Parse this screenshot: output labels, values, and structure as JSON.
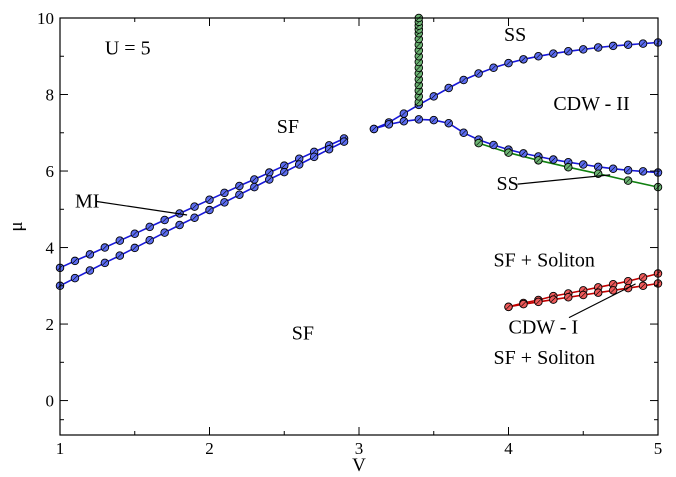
{
  "chart_data": {
    "type": "scatter",
    "xlabel": "V",
    "ylabel": "μ",
    "xlim": [
      1,
      5
    ],
    "ylim": [
      -0.9,
      10
    ],
    "x_ticks": [
      1,
      2,
      3,
      4,
      5
    ],
    "y_ticks": [
      0,
      2,
      4,
      6,
      8,
      10
    ],
    "grid": false,
    "legend": "none",
    "colors": {
      "blue": "#5b6cf0",
      "green": "#6db574",
      "red": "#ee5a5a",
      "blue_line": "#1818d8",
      "green_line": "#108010",
      "red_line": "#c00000"
    },
    "series": [
      {
        "color": "blue",
        "x": [
          1.0,
          1.1,
          1.2,
          1.3,
          1.4,
          1.5,
          1.6,
          1.7,
          1.8,
          1.9,
          2.0,
          2.1,
          2.2,
          2.3,
          2.4,
          2.5,
          2.6,
          2.7,
          2.8,
          2.9
        ],
        "y": [
          3.47,
          3.65,
          3.82,
          4.0,
          4.18,
          4.36,
          4.54,
          4.72,
          4.89,
          5.07,
          5.25,
          5.43,
          5.61,
          5.78,
          5.96,
          6.14,
          6.32,
          6.5,
          6.67,
          6.85
        ]
      },
      {
        "color": "blue",
        "x": [
          1.0,
          1.1,
          1.2,
          1.3,
          1.4,
          1.5,
          1.6,
          1.7,
          1.8,
          1.9,
          2.0,
          2.1,
          2.2,
          2.3,
          2.4,
          2.5,
          2.6,
          2.7,
          2.8,
          2.9
        ],
        "y": [
          3.0,
          3.2,
          3.4,
          3.6,
          3.79,
          3.99,
          4.19,
          4.39,
          4.59,
          4.78,
          4.98,
          5.18,
          5.38,
          5.58,
          5.78,
          5.97,
          6.17,
          6.37,
          6.57,
          6.77
        ]
      },
      {
        "color": "blue",
        "x": [
          3.1,
          3.2,
          3.3,
          3.4,
          3.5,
          3.6,
          3.7,
          3.8,
          3.9,
          4.0,
          4.1,
          4.2,
          4.3,
          4.4,
          4.5,
          4.6,
          4.7,
          4.8,
          4.9,
          5.0
        ],
        "y": [
          7.1,
          7.27,
          7.5,
          7.73,
          7.95,
          8.17,
          8.38,
          8.55,
          8.7,
          8.82,
          8.92,
          9.0,
          9.07,
          9.13,
          9.18,
          9.23,
          9.27,
          9.3,
          9.33,
          9.36
        ]
      },
      {
        "color": "blue",
        "x": [
          3.1,
          3.2,
          3.3,
          3.4,
          3.5,
          3.6,
          3.7,
          3.8,
          3.9,
          4.0,
          4.1,
          4.2,
          4.3,
          4.4,
          4.5,
          4.6,
          4.7,
          4.8,
          4.9,
          5.0
        ],
        "y": [
          7.1,
          7.22,
          7.3,
          7.35,
          7.33,
          7.25,
          7.0,
          6.82,
          6.68,
          6.56,
          6.46,
          6.38,
          6.3,
          6.23,
          6.17,
          6.11,
          6.06,
          6.02,
          5.99,
          5.96
        ]
      },
      {
        "color": "green",
        "x": [
          3.4,
          3.4,
          3.4,
          3.4,
          3.4,
          3.4,
          3.4,
          3.4,
          3.4,
          3.4,
          3.4,
          3.4,
          3.4,
          3.4,
          3.4,
          3.4,
          3.4
        ],
        "y": [
          7.8,
          7.95,
          8.1,
          8.25,
          8.4,
          8.55,
          8.7,
          8.85,
          9.0,
          9.15,
          9.3,
          9.45,
          9.6,
          9.7,
          9.8,
          9.9,
          10.0
        ]
      },
      {
        "color": "green",
        "x": [
          3.8,
          4.0,
          4.2,
          4.4,
          4.6,
          4.8,
          5.0
        ],
        "y": [
          6.73,
          6.48,
          6.28,
          6.1,
          5.93,
          5.75,
          5.58
        ]
      },
      {
        "color": "red",
        "x": [
          4.0,
          4.1,
          4.2,
          4.3,
          4.4,
          4.5,
          4.6,
          4.7,
          4.8,
          4.9,
          5.0
        ],
        "y": [
          2.45,
          2.55,
          2.63,
          2.73,
          2.8,
          2.88,
          2.96,
          3.04,
          3.12,
          3.22,
          3.32
        ]
      },
      {
        "color": "red",
        "x": [
          4.0,
          4.1,
          4.2,
          4.3,
          4.4,
          4.5,
          4.6,
          4.7,
          4.8,
          4.9,
          5.0
        ],
        "y": [
          2.45,
          2.52,
          2.58,
          2.64,
          2.7,
          2.76,
          2.82,
          2.88,
          2.94,
          3.0,
          3.06
        ]
      }
    ],
    "annotations": [
      {
        "text": "U = 5",
        "x": 1.3,
        "y": 9.05
      },
      {
        "text": "SF",
        "x": 2.45,
        "y": 7.0
      },
      {
        "text": "SF",
        "x": 2.55,
        "y": 1.6
      },
      {
        "text": "MI",
        "x": 1.1,
        "y": 5.05,
        "arrow_to": [
          1.85,
          4.85
        ]
      },
      {
        "text": "SS",
        "x": 3.97,
        "y": 9.4
      },
      {
        "text": "CDW - II",
        "x": 4.3,
        "y": 7.6
      },
      {
        "text": "SS",
        "x": 3.92,
        "y": 5.5,
        "arrow_to": [
          4.68,
          5.9
        ]
      },
      {
        "text": "SF + Soliton",
        "x": 3.9,
        "y": 3.5
      },
      {
        "text": "CDW - I",
        "x": 4.0,
        "y": 1.75,
        "arrow_to": [
          4.85,
          3.05
        ]
      },
      {
        "text": "SF + Soliton",
        "x": 3.9,
        "y": 0.95
      }
    ]
  }
}
